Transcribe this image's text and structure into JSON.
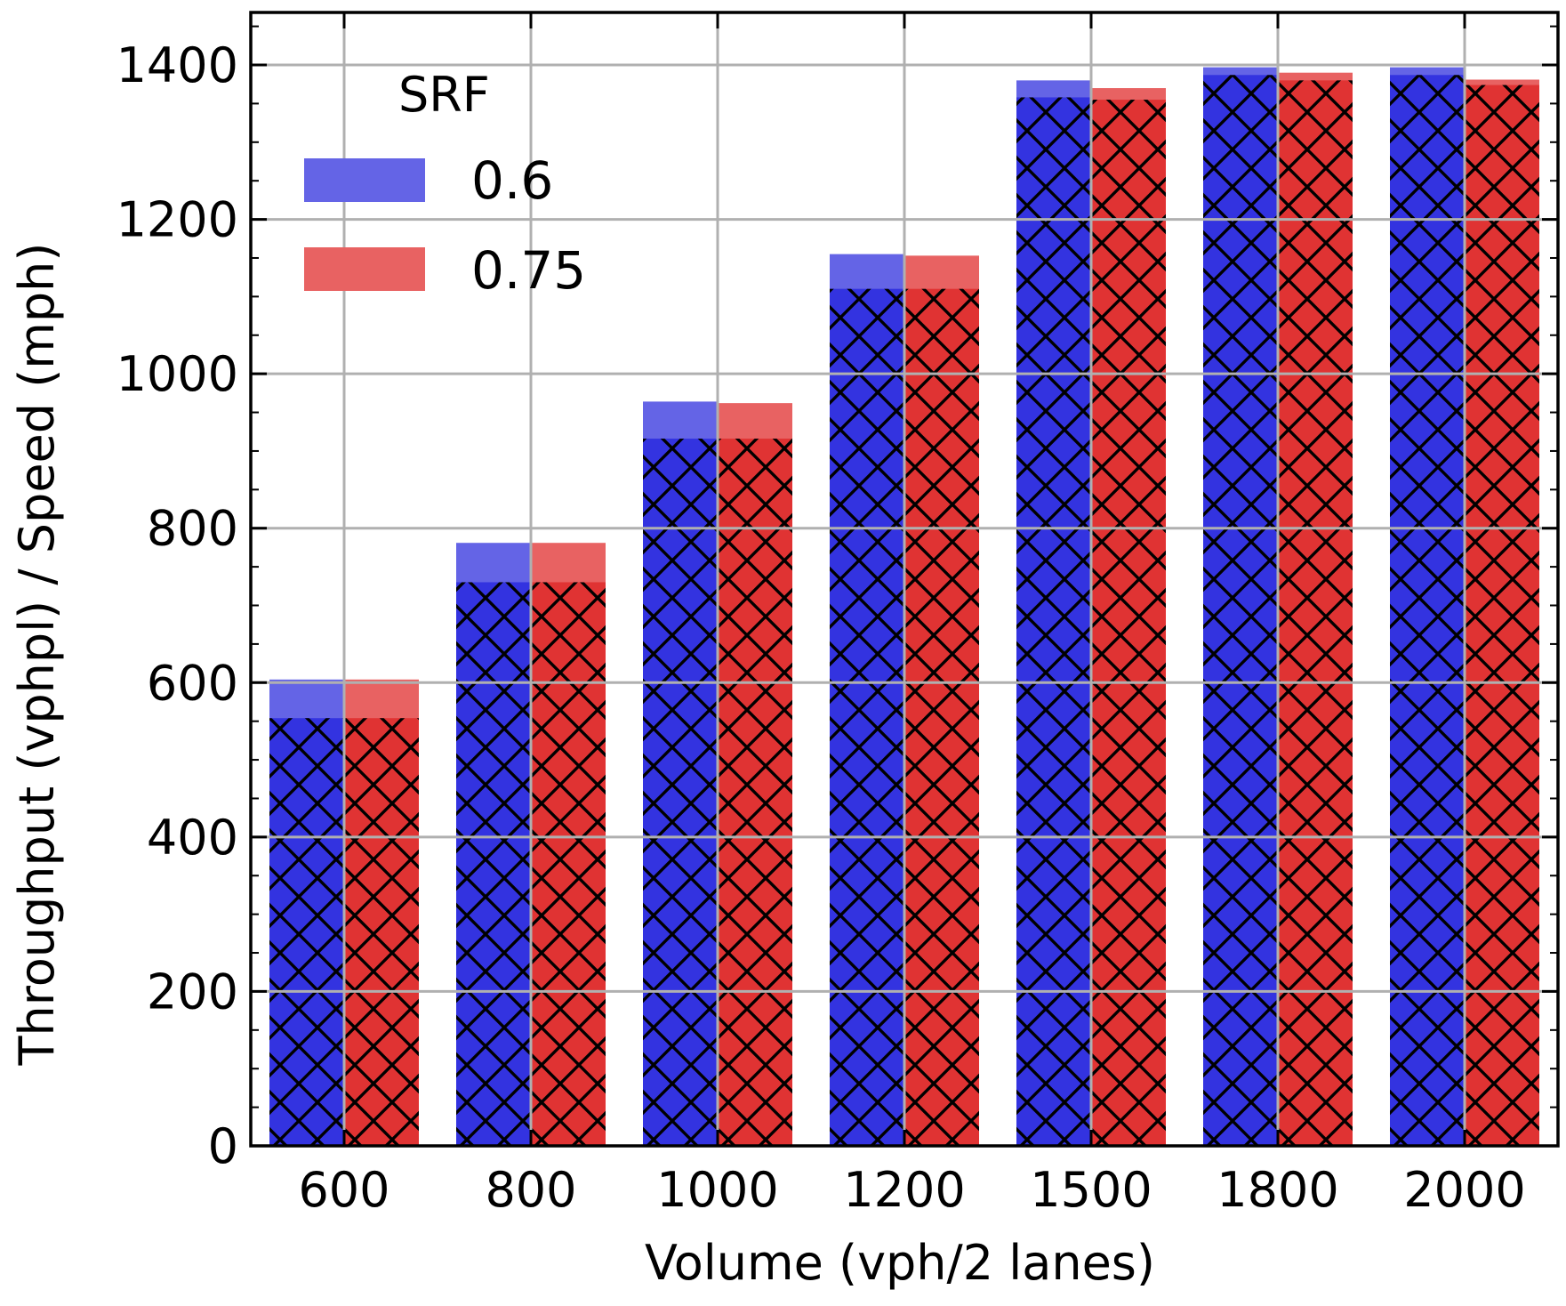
{
  "chart_data": {
    "type": "bar",
    "title": "",
    "xlabel": "Volume (vph/2 lanes)",
    "ylabel": "Throughput (vphpl) / Speed (mph)",
    "categories": [
      "600",
      "800",
      "1000",
      "1200",
      "1500",
      "1800",
      "2000"
    ],
    "ylim": [
      0,
      1468
    ],
    "yticks": [
      "0",
      "200",
      "400",
      "600",
      "800",
      "1000",
      "1200",
      "1400"
    ],
    "ytick_values": [
      0,
      200,
      400,
      600,
      800,
      1000,
      1200,
      1400
    ],
    "grid": true,
    "legend": {
      "title": "SRF",
      "position": "top-left"
    },
    "series": [
      {
        "name": "0.6",
        "color": "#3333e0",
        "light_color": "#6464e6",
        "values": [
          604,
          781,
          964,
          1155,
          1380,
          1397,
          1397
        ],
        "hatched_values": [
          554,
          730,
          916,
          1110,
          1358,
          1387,
          1387
        ]
      },
      {
        "name": "0.75",
        "color": "#e03333",
        "light_color": "#e86262",
        "values": [
          604,
          781,
          962,
          1153,
          1370,
          1390,
          1381
        ],
        "hatched_values": [
          554,
          730,
          916,
          1110,
          1355,
          1380,
          1374
        ]
      }
    ]
  }
}
